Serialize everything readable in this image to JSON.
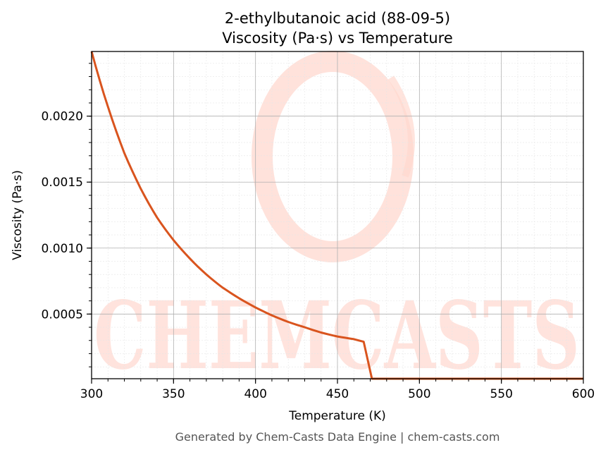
{
  "chart_data": {
    "type": "line",
    "title_line1": "2-ethylbutanoic acid (88-09-5)",
    "title_line2": "Viscosity (Pa·s) vs Temperature",
    "xlabel": "Temperature (K)",
    "ylabel": "Viscosity (Pa·s)",
    "xlim": [
      300,
      600
    ],
    "ylim": [
      1e-05,
      0.00249
    ],
    "x_ticks": [
      "300",
      "350",
      "400",
      "450",
      "500",
      "550",
      "600"
    ],
    "y_ticks": [
      "0.0005",
      "0.0010",
      "0.0015",
      "0.0020"
    ],
    "grid": true,
    "series": [
      {
        "color": "#d9541e",
        "x": [
          300,
          310,
          320,
          330,
          340,
          350,
          360,
          370,
          380,
          390,
          400,
          410,
          420,
          430,
          440,
          450,
          460,
          466,
          471,
          480,
          500,
          550,
          600
        ],
        "y": [
          0.00249,
          0.00207,
          0.00172,
          0.00145,
          0.00123,
          0.00106,
          0.00092,
          0.0008,
          0.0007,
          0.00062,
          0.00055,
          0.00049,
          0.00044,
          0.0004,
          0.00036,
          0.00033,
          0.00031,
          0.00029,
          1e-05,
          1e-05,
          1e-05,
          1e-05,
          1e-05
        ]
      }
    ]
  },
  "watermark": {
    "text": "CHEMCASTS",
    "color": "#ffd8cf"
  },
  "footer": "Generated by Chem-Casts Data Engine | chem-casts.com"
}
